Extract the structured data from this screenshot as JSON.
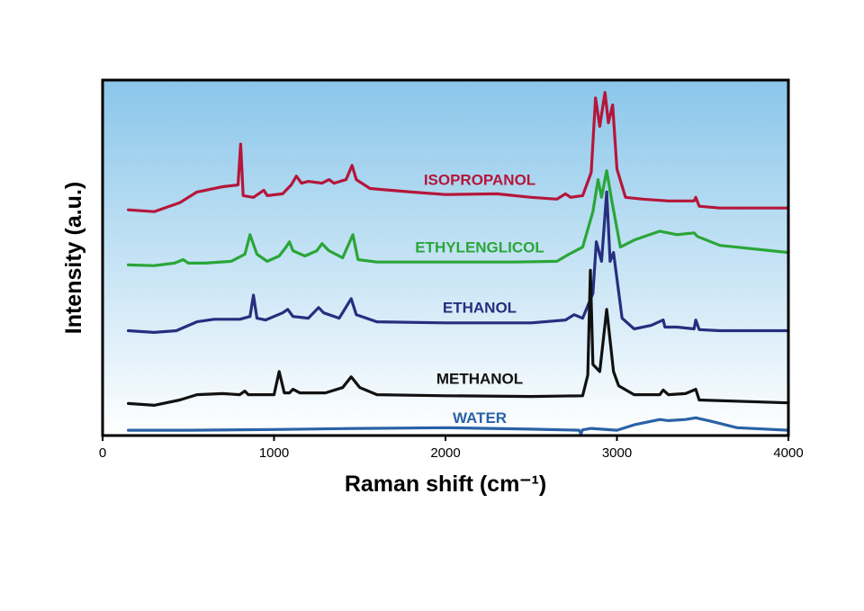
{
  "chart_data": {
    "type": "line",
    "xlabel": "Raman shift (cm⁻¹)",
    "ylabel": "Intensity (a.u.)",
    "xlim": [
      0,
      4000
    ],
    "ylim": [
      0,
      10
    ],
    "x_ticks": [
      "0",
      "1000",
      "2000",
      "3000",
      "4000"
    ],
    "grid": false,
    "legend": "inline labels",
    "background_gradient": [
      "#8ac6ea",
      "#ffffff"
    ],
    "series": [
      {
        "name": "ISOPROPANOL",
        "color": "#b5163a",
        "points": [
          [
            150,
            6.35
          ],
          [
            300,
            6.3
          ],
          [
            450,
            6.55
          ],
          [
            550,
            6.85
          ],
          [
            700,
            7.0
          ],
          [
            790,
            7.05
          ],
          [
            805,
            8.2
          ],
          [
            820,
            6.75
          ],
          [
            880,
            6.7
          ],
          [
            940,
            6.9
          ],
          [
            960,
            6.75
          ],
          [
            1050,
            6.8
          ],
          [
            1100,
            7.05
          ],
          [
            1130,
            7.3
          ],
          [
            1160,
            7.1
          ],
          [
            1200,
            7.15
          ],
          [
            1280,
            7.1
          ],
          [
            1320,
            7.2
          ],
          [
            1350,
            7.1
          ],
          [
            1420,
            7.2
          ],
          [
            1455,
            7.6
          ],
          [
            1480,
            7.2
          ],
          [
            1560,
            6.95
          ],
          [
            1800,
            6.85
          ],
          [
            2000,
            6.78
          ],
          [
            2300,
            6.8
          ],
          [
            2500,
            6.7
          ],
          [
            2650,
            6.65
          ],
          [
            2700,
            6.8
          ],
          [
            2730,
            6.7
          ],
          [
            2800,
            6.75
          ],
          [
            2850,
            7.4
          ],
          [
            2875,
            9.5
          ],
          [
            2900,
            8.7
          ],
          [
            2930,
            9.65
          ],
          [
            2950,
            8.8
          ],
          [
            2975,
            9.3
          ],
          [
            3000,
            7.5
          ],
          [
            3050,
            6.7
          ],
          [
            3150,
            6.65
          ],
          [
            3300,
            6.6
          ],
          [
            3450,
            6.6
          ],
          [
            3460,
            6.7
          ],
          [
            3480,
            6.45
          ],
          [
            3600,
            6.4
          ],
          [
            4000,
            6.4
          ]
        ]
      },
      {
        "name": "ETHYLENGLICOL",
        "color": "#2aa638",
        "points": [
          [
            150,
            4.8
          ],
          [
            300,
            4.78
          ],
          [
            420,
            4.85
          ],
          [
            470,
            4.95
          ],
          [
            500,
            4.85
          ],
          [
            600,
            4.85
          ],
          [
            750,
            4.9
          ],
          [
            830,
            5.1
          ],
          [
            860,
            5.65
          ],
          [
            900,
            5.1
          ],
          [
            960,
            4.9
          ],
          [
            1030,
            5.05
          ],
          [
            1070,
            5.3
          ],
          [
            1090,
            5.45
          ],
          [
            1110,
            5.2
          ],
          [
            1180,
            5.05
          ],
          [
            1250,
            5.2
          ],
          [
            1280,
            5.4
          ],
          [
            1320,
            5.2
          ],
          [
            1400,
            5.0
          ],
          [
            1460,
            5.65
          ],
          [
            1490,
            4.95
          ],
          [
            1600,
            4.88
          ],
          [
            2000,
            4.88
          ],
          [
            2400,
            4.88
          ],
          [
            2650,
            4.9
          ],
          [
            2720,
            5.1
          ],
          [
            2800,
            5.3
          ],
          [
            2860,
            6.3
          ],
          [
            2890,
            7.2
          ],
          [
            2910,
            6.7
          ],
          [
            2940,
            7.45
          ],
          [
            2970,
            6.6
          ],
          [
            3020,
            5.3
          ],
          [
            3100,
            5.5
          ],
          [
            3250,
            5.75
          ],
          [
            3350,
            5.65
          ],
          [
            3450,
            5.7
          ],
          [
            3470,
            5.6
          ],
          [
            3600,
            5.35
          ],
          [
            4000,
            5.15
          ]
        ]
      },
      {
        "name": "ETHANOL",
        "color": "#272e7e",
        "points": [
          [
            150,
            2.95
          ],
          [
            300,
            2.9
          ],
          [
            430,
            2.95
          ],
          [
            550,
            3.2
          ],
          [
            650,
            3.27
          ],
          [
            800,
            3.27
          ],
          [
            860,
            3.35
          ],
          [
            880,
            3.95
          ],
          [
            900,
            3.3
          ],
          [
            950,
            3.25
          ],
          [
            1050,
            3.45
          ],
          [
            1080,
            3.55
          ],
          [
            1110,
            3.35
          ],
          [
            1200,
            3.3
          ],
          [
            1260,
            3.6
          ],
          [
            1290,
            3.45
          ],
          [
            1380,
            3.3
          ],
          [
            1450,
            3.85
          ],
          [
            1480,
            3.4
          ],
          [
            1600,
            3.2
          ],
          [
            2000,
            3.17
          ],
          [
            2500,
            3.17
          ],
          [
            2700,
            3.25
          ],
          [
            2750,
            3.4
          ],
          [
            2800,
            3.3
          ],
          [
            2860,
            4.0
          ],
          [
            2880,
            5.45
          ],
          [
            2910,
            4.9
          ],
          [
            2940,
            6.85
          ],
          [
            2960,
            4.9
          ],
          [
            2980,
            5.15
          ],
          [
            3030,
            3.3
          ],
          [
            3100,
            3.0
          ],
          [
            3200,
            3.1
          ],
          [
            3270,
            3.25
          ],
          [
            3280,
            3.05
          ],
          [
            3350,
            3.05
          ],
          [
            3450,
            3.0
          ],
          [
            3460,
            3.25
          ],
          [
            3480,
            2.98
          ],
          [
            3600,
            2.95
          ],
          [
            4000,
            2.95
          ]
        ]
      },
      {
        "name": "METHANOL",
        "color": "#111111",
        "points": [
          [
            150,
            0.9
          ],
          [
            300,
            0.85
          ],
          [
            450,
            1.0
          ],
          [
            550,
            1.15
          ],
          [
            700,
            1.18
          ],
          [
            800,
            1.15
          ],
          [
            830,
            1.25
          ],
          [
            850,
            1.15
          ],
          [
            1000,
            1.15
          ],
          [
            1030,
            1.8
          ],
          [
            1060,
            1.2
          ],
          [
            1090,
            1.2
          ],
          [
            1110,
            1.3
          ],
          [
            1150,
            1.2
          ],
          [
            1300,
            1.2
          ],
          [
            1400,
            1.35
          ],
          [
            1450,
            1.65
          ],
          [
            1500,
            1.35
          ],
          [
            1600,
            1.15
          ],
          [
            2000,
            1.12
          ],
          [
            2500,
            1.1
          ],
          [
            2800,
            1.12
          ],
          [
            2830,
            1.7
          ],
          [
            2845,
            4.65
          ],
          [
            2860,
            2.0
          ],
          [
            2900,
            1.8
          ],
          [
            2940,
            3.55
          ],
          [
            2980,
            1.8
          ],
          [
            3010,
            1.4
          ],
          [
            3100,
            1.15
          ],
          [
            3250,
            1.15
          ],
          [
            3270,
            1.28
          ],
          [
            3300,
            1.15
          ],
          [
            3400,
            1.18
          ],
          [
            3460,
            1.3
          ],
          [
            3480,
            1.0
          ],
          [
            4000,
            0.92
          ]
        ]
      },
      {
        "name": "WATER",
        "color": "#2a62a6",
        "points": [
          [
            150,
            0.15
          ],
          [
            500,
            0.15
          ],
          [
            1000,
            0.17
          ],
          [
            1500,
            0.2
          ],
          [
            2000,
            0.22
          ],
          [
            2500,
            0.18
          ],
          [
            2780,
            0.15
          ],
          [
            2790,
            0.05
          ],
          [
            2800,
            0.16
          ],
          [
            2850,
            0.2
          ],
          [
            3000,
            0.15
          ],
          [
            3100,
            0.3
          ],
          [
            3250,
            0.45
          ],
          [
            3300,
            0.42
          ],
          [
            3400,
            0.45
          ],
          [
            3460,
            0.5
          ],
          [
            3550,
            0.4
          ],
          [
            3700,
            0.22
          ],
          [
            4000,
            0.15
          ]
        ]
      }
    ]
  }
}
